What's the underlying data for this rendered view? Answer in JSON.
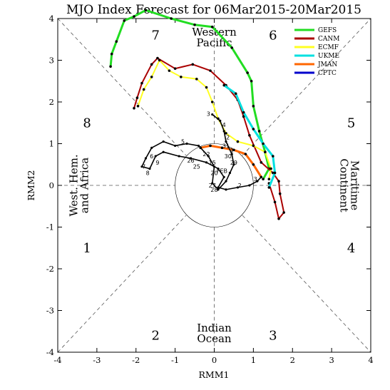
{
  "chart_data": {
    "type": "line",
    "title": "MJO Index Forecast for 06Mar2015-20Mar2015",
    "xlabel": "RMM1",
    "ylabel": "RMM2",
    "xlim": [
      -4,
      4
    ],
    "ylim": [
      -4,
      4
    ],
    "ticks": [
      "-4",
      "-3",
      "-2",
      "-1",
      "0",
      "1",
      "2",
      "3",
      "4"
    ],
    "phase_labels": [
      {
        "phase": "1",
        "x": -3.25,
        "y": -1.5
      },
      {
        "phase": "2",
        "x": -1.5,
        "y": -3.6
      },
      {
        "phase": "3",
        "x": 1.5,
        "y": -3.6
      },
      {
        "phase": "4",
        "x": 3.5,
        "y": -1.5
      },
      {
        "phase": "5",
        "x": 3.5,
        "y": 1.5
      },
      {
        "phase": "6",
        "x": 1.5,
        "y": 3.6
      },
      {
        "phase": "7",
        "x": -1.5,
        "y": 3.6
      },
      {
        "phase": "8",
        "x": -3.25,
        "y": 1.5
      }
    ],
    "regions": [
      {
        "lines": [
          "Western",
          "Pacific"
        ],
        "x": 0,
        "y": 3.55,
        "rotate": 0
      },
      {
        "lines": [
          "Indian",
          "Ocean"
        ],
        "x": 0,
        "y": -3.55,
        "rotate": 0
      },
      {
        "lines": [
          "West. Hem.",
          "and Africa"
        ],
        "x": -3.45,
        "y": 0,
        "rotate": -90
      },
      {
        "lines": [
          "Maritime",
          "Continent"
        ],
        "x": 3.45,
        "y": 0,
        "rotate": 90
      }
    ],
    "unit_circle_radius": 1,
    "series": [
      {
        "name": "GEFS",
        "color": "#22dd22",
        "width": 3,
        "points": [
          [
            1.25,
            0.15
          ],
          [
            1.4,
            0.4
          ],
          [
            1.3,
            0.8
          ],
          [
            1.15,
            1.3
          ],
          [
            1.0,
            1.9
          ],
          [
            0.95,
            2.5
          ],
          [
            0.85,
            2.7
          ],
          [
            0.45,
            3.3
          ],
          [
            -0.05,
            3.8
          ],
          [
            -0.5,
            3.85
          ],
          [
            -1.1,
            4.0
          ],
          [
            -1.75,
            4.2
          ],
          [
            -2.05,
            4.05
          ],
          [
            -2.3,
            3.95
          ],
          [
            -2.5,
            3.45
          ],
          [
            -2.62,
            3.15
          ],
          [
            -2.65,
            2.85
          ]
        ]
      },
      {
        "name": "CANM",
        "color": "#aa0000",
        "width": 2,
        "points": [
          [
            1.4,
            0.05
          ],
          [
            1.55,
            -0.4
          ],
          [
            1.65,
            -0.8
          ],
          [
            1.78,
            -0.65
          ],
          [
            1.68,
            -0.2
          ],
          [
            1.65,
            0.1
          ],
          [
            1.5,
            0.3
          ],
          [
            1.2,
            0.55
          ],
          [
            0.9,
            1.2
          ],
          [
            0.75,
            1.65
          ],
          [
            0.6,
            2.05
          ],
          [
            0.3,
            2.4
          ],
          [
            -0.1,
            2.75
          ],
          [
            -0.55,
            2.9
          ],
          [
            -1.0,
            2.8
          ],
          [
            -1.45,
            3.05
          ],
          [
            -1.6,
            2.9
          ],
          [
            -1.85,
            2.45
          ],
          [
            -1.97,
            2.1
          ],
          [
            -2.05,
            1.85
          ]
        ]
      },
      {
        "name": "ECMF",
        "color": "#ffff22",
        "width": 2,
        "points": [
          [
            1.4,
            0.15
          ],
          [
            1.45,
            0.4
          ],
          [
            1.3,
            0.8
          ],
          [
            1.0,
            0.95
          ],
          [
            0.6,
            1.05
          ],
          [
            0.3,
            1.25
          ],
          [
            0.1,
            1.6
          ],
          [
            -0.05,
            2.0
          ],
          [
            -0.2,
            2.35
          ],
          [
            -0.45,
            2.55
          ],
          [
            -0.85,
            2.6
          ],
          [
            -1.15,
            2.75
          ],
          [
            -1.4,
            3.0
          ],
          [
            -1.6,
            2.6
          ],
          [
            -1.8,
            2.3
          ],
          [
            -1.95,
            1.9
          ]
        ]
      },
      {
        "name": "UKME",
        "color": "#00e0e0",
        "width": 3,
        "points": [
          [
            1.4,
            -0.05
          ],
          [
            1.55,
            0.3
          ],
          [
            1.5,
            0.7
          ],
          [
            1.25,
            1.0
          ],
          [
            1.0,
            1.35
          ],
          [
            0.75,
            1.75
          ],
          [
            0.55,
            2.2
          ],
          [
            0.25,
            2.4
          ]
        ]
      },
      {
        "name": "JMAN",
        "color": "#ff6600",
        "width": 3,
        "points": [
          [
            1.2,
            0.2
          ],
          [
            1.0,
            0.5
          ],
          [
            0.8,
            0.75
          ],
          [
            0.5,
            0.85
          ],
          [
            0.2,
            0.9
          ],
          [
            -0.1,
            0.95
          ],
          [
            -0.35,
            0.9
          ]
        ]
      },
      {
        "name": "CPTC",
        "color": "#0000cc",
        "width": 2,
        "points": []
      }
    ],
    "observed": {
      "name": "Observed",
      "color": "#000000",
      "points": [
        [
          -0.05,
          1.7
        ],
        [
          0.15,
          1.55
        ],
        [
          0.25,
          1.3
        ],
        [
          0.3,
          1.05
        ],
        [
          0.45,
          0.75
        ],
        [
          0.5,
          0.5
        ],
        [
          0.4,
          0.3
        ],
        [
          0.3,
          0.1
        ],
        [
          0.1,
          -0.1
        ],
        [
          -0.05,
          0.05
        ],
        [
          0.0,
          0.45
        ],
        [
          -0.15,
          0.7
        ],
        [
          -0.4,
          0.95
        ],
        [
          -0.7,
          1.0
        ],
        [
          -1.0,
          0.95
        ],
        [
          -1.3,
          1.05
        ],
        [
          -1.6,
          0.9
        ],
        [
          -1.75,
          0.65
        ],
        [
          -1.85,
          0.45
        ],
        [
          -1.65,
          0.4
        ],
        [
          -1.5,
          0.7
        ],
        [
          -1.3,
          0.8
        ],
        [
          -0.9,
          0.7
        ],
        [
          -0.6,
          0.65
        ],
        [
          -0.2,
          0.55
        ],
        [
          0.1,
          0.4
        ],
        [
          0.25,
          0.2
        ],
        [
          0.1,
          -0.05
        ],
        [
          0.3,
          -0.1
        ],
        [
          0.6,
          -0.05
        ],
        [
          0.9,
          0.0
        ],
        [
          1.1,
          0.1
        ],
        [
          1.2,
          0.2
        ]
      ],
      "day_labels": [
        {
          "text": "3",
          "x": -0.15,
          "y": 1.72
        },
        {
          "text": "4",
          "x": 0.25,
          "y": 1.45
        },
        {
          "text": "2",
          "x": 0.35,
          "y": 1.15
        },
        {
          "text": "31",
          "x": 0.3,
          "y": 0.95
        },
        {
          "text": "1",
          "x": 0.45,
          "y": 0.85
        },
        {
          "text": "30",
          "x": 0.35,
          "y": 0.7
        },
        {
          "text": "29",
          "x": 0.5,
          "y": 0.55
        },
        {
          "text": "FEB",
          "x": 0.2,
          "y": 0.35
        },
        {
          "text": "5",
          "x": -0.8,
          "y": 1.05
        },
        {
          "text": "6",
          "x": -1.6,
          "y": 0.7
        },
        {
          "text": "7",
          "x": -1.8,
          "y": 0.45
        },
        {
          "text": "8",
          "x": -1.7,
          "y": 0.3
        },
        {
          "text": "9",
          "x": -1.45,
          "y": 0.55
        },
        {
          "text": "26",
          "x": -0.6,
          "y": 0.6
        },
        {
          "text": "25",
          "x": -0.45,
          "y": 0.45
        },
        {
          "text": "22",
          "x": -0.2,
          "y": 0.75
        },
        {
          "text": "15",
          "x": -0.05,
          "y": 0.55
        },
        {
          "text": "20",
          "x": 0.0,
          "y": 0.3
        },
        {
          "text": "27",
          "x": -0.05,
          "y": 0.0
        },
        {
          "text": "28",
          "x": 0.0,
          "y": -0.1
        },
        {
          "text": "2",
          "x": 0.65,
          "y": 0.0
        },
        {
          "text": "3",
          "x": 1.05,
          "y": 0.15
        }
      ]
    },
    "legend_position": "top-right"
  }
}
